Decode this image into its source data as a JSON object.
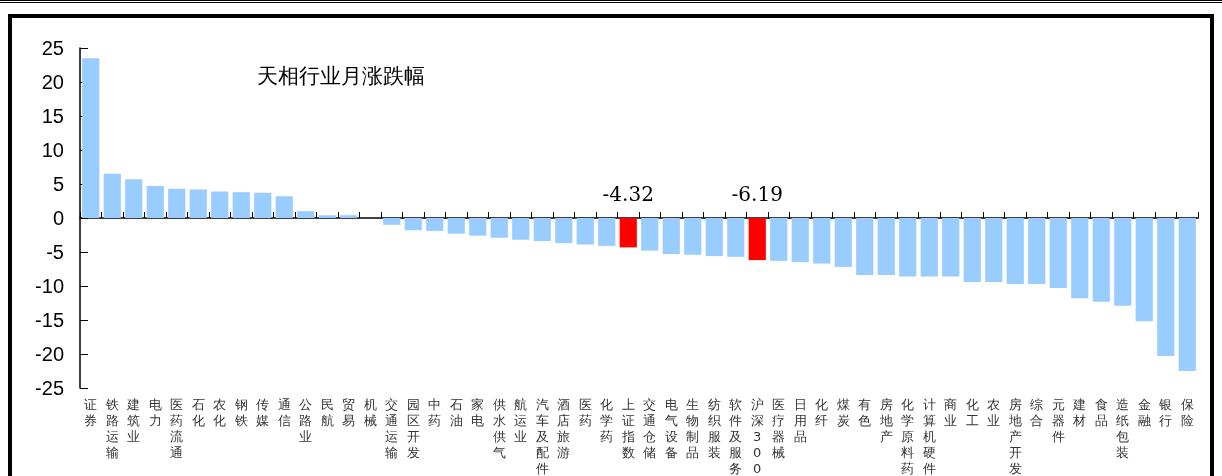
{
  "chart_data": {
    "type": "bar",
    "title": "天相行业月涨跌幅",
    "categories": [
      "证券",
      "铁路运输",
      "建筑业",
      "电力",
      "医药流通",
      "石化",
      "农化",
      "钢铁",
      "传媒",
      "通信",
      "公路业",
      "民航",
      "贸易",
      "机械",
      "交通运输",
      "园区开发",
      "中药",
      "石油",
      "家电",
      "供水供气",
      "航运业",
      "汽车及配件",
      "酒店旅游",
      "医药",
      "化学药",
      "上证指数",
      "交通仓储",
      "电气设备",
      "生物制品",
      "纺织服装",
      "软件及服务",
      "沪深300",
      "医疗器械",
      "日用品",
      "化纤",
      "煤炭",
      "有色",
      "房地产",
      "化学原料药",
      "计算机硬件",
      "商业",
      "化工",
      "农业",
      "房地产开发",
      "综合",
      "元器件",
      "建材",
      "食品",
      "造纸包装",
      "金融",
      "银行",
      "保险"
    ],
    "values": [
      23.5,
      6.5,
      5.7,
      4.7,
      4.3,
      4.2,
      3.9,
      3.8,
      3.7,
      3.2,
      1.0,
      0.4,
      0.4,
      0,
      -1.0,
      -1.8,
      -1.9,
      -2.3,
      -2.6,
      -2.9,
      -3.2,
      -3.4,
      -3.7,
      -3.9,
      -4.1,
      -4.32,
      -4.8,
      -5.3,
      -5.4,
      -5.6,
      -5.7,
      -6.19,
      -6.3,
      -6.5,
      -6.7,
      -7.2,
      -8.4,
      -8.4,
      -8.6,
      -8.6,
      -8.6,
      -9.4,
      -9.4,
      -9.7,
      -9.7,
      -10.3,
      -11.8,
      -12.3,
      -12.9,
      -15.2,
      -20.3,
      -22.5
    ],
    "colors": [
      "#99ccff",
      "#99ccff",
      "#99ccff",
      "#99ccff",
      "#99ccff",
      "#99ccff",
      "#99ccff",
      "#99ccff",
      "#99ccff",
      "#99ccff",
      "#99ccff",
      "#99ccff",
      "#99ccff",
      "#99ccff",
      "#99ccff",
      "#99ccff",
      "#99ccff",
      "#99ccff",
      "#99ccff",
      "#99ccff",
      "#99ccff",
      "#99ccff",
      "#99ccff",
      "#99ccff",
      "#99ccff",
      "#ff0000",
      "#99ccff",
      "#99ccff",
      "#99ccff",
      "#99ccff",
      "#99ccff",
      "#ff0000",
      "#99ccff",
      "#99ccff",
      "#99ccff",
      "#99ccff",
      "#99ccff",
      "#99ccff",
      "#99ccff",
      "#99ccff",
      "#99ccff",
      "#99ccff",
      "#99ccff",
      "#99ccff",
      "#99ccff",
      "#99ccff",
      "#99ccff",
      "#99ccff",
      "#99ccff",
      "#99ccff",
      "#99ccff",
      "#99ccff"
    ],
    "value_labels": [
      null,
      null,
      null,
      null,
      null,
      null,
      null,
      null,
      null,
      null,
      null,
      null,
      null,
      null,
      null,
      null,
      null,
      null,
      null,
      null,
      null,
      null,
      null,
      null,
      null,
      "-4.32",
      null,
      null,
      null,
      null,
      null,
      "-6.19",
      null,
      null,
      null,
      null,
      null,
      null,
      null,
      null,
      null,
      null,
      null,
      null,
      null,
      null,
      null,
      null,
      null,
      null,
      null,
      null
    ],
    "ylim": [
      -25,
      25
    ],
    "yticks": [
      -25,
      -20,
      -15,
      -10,
      -5,
      0,
      5,
      10,
      15,
      20,
      25
    ]
  }
}
